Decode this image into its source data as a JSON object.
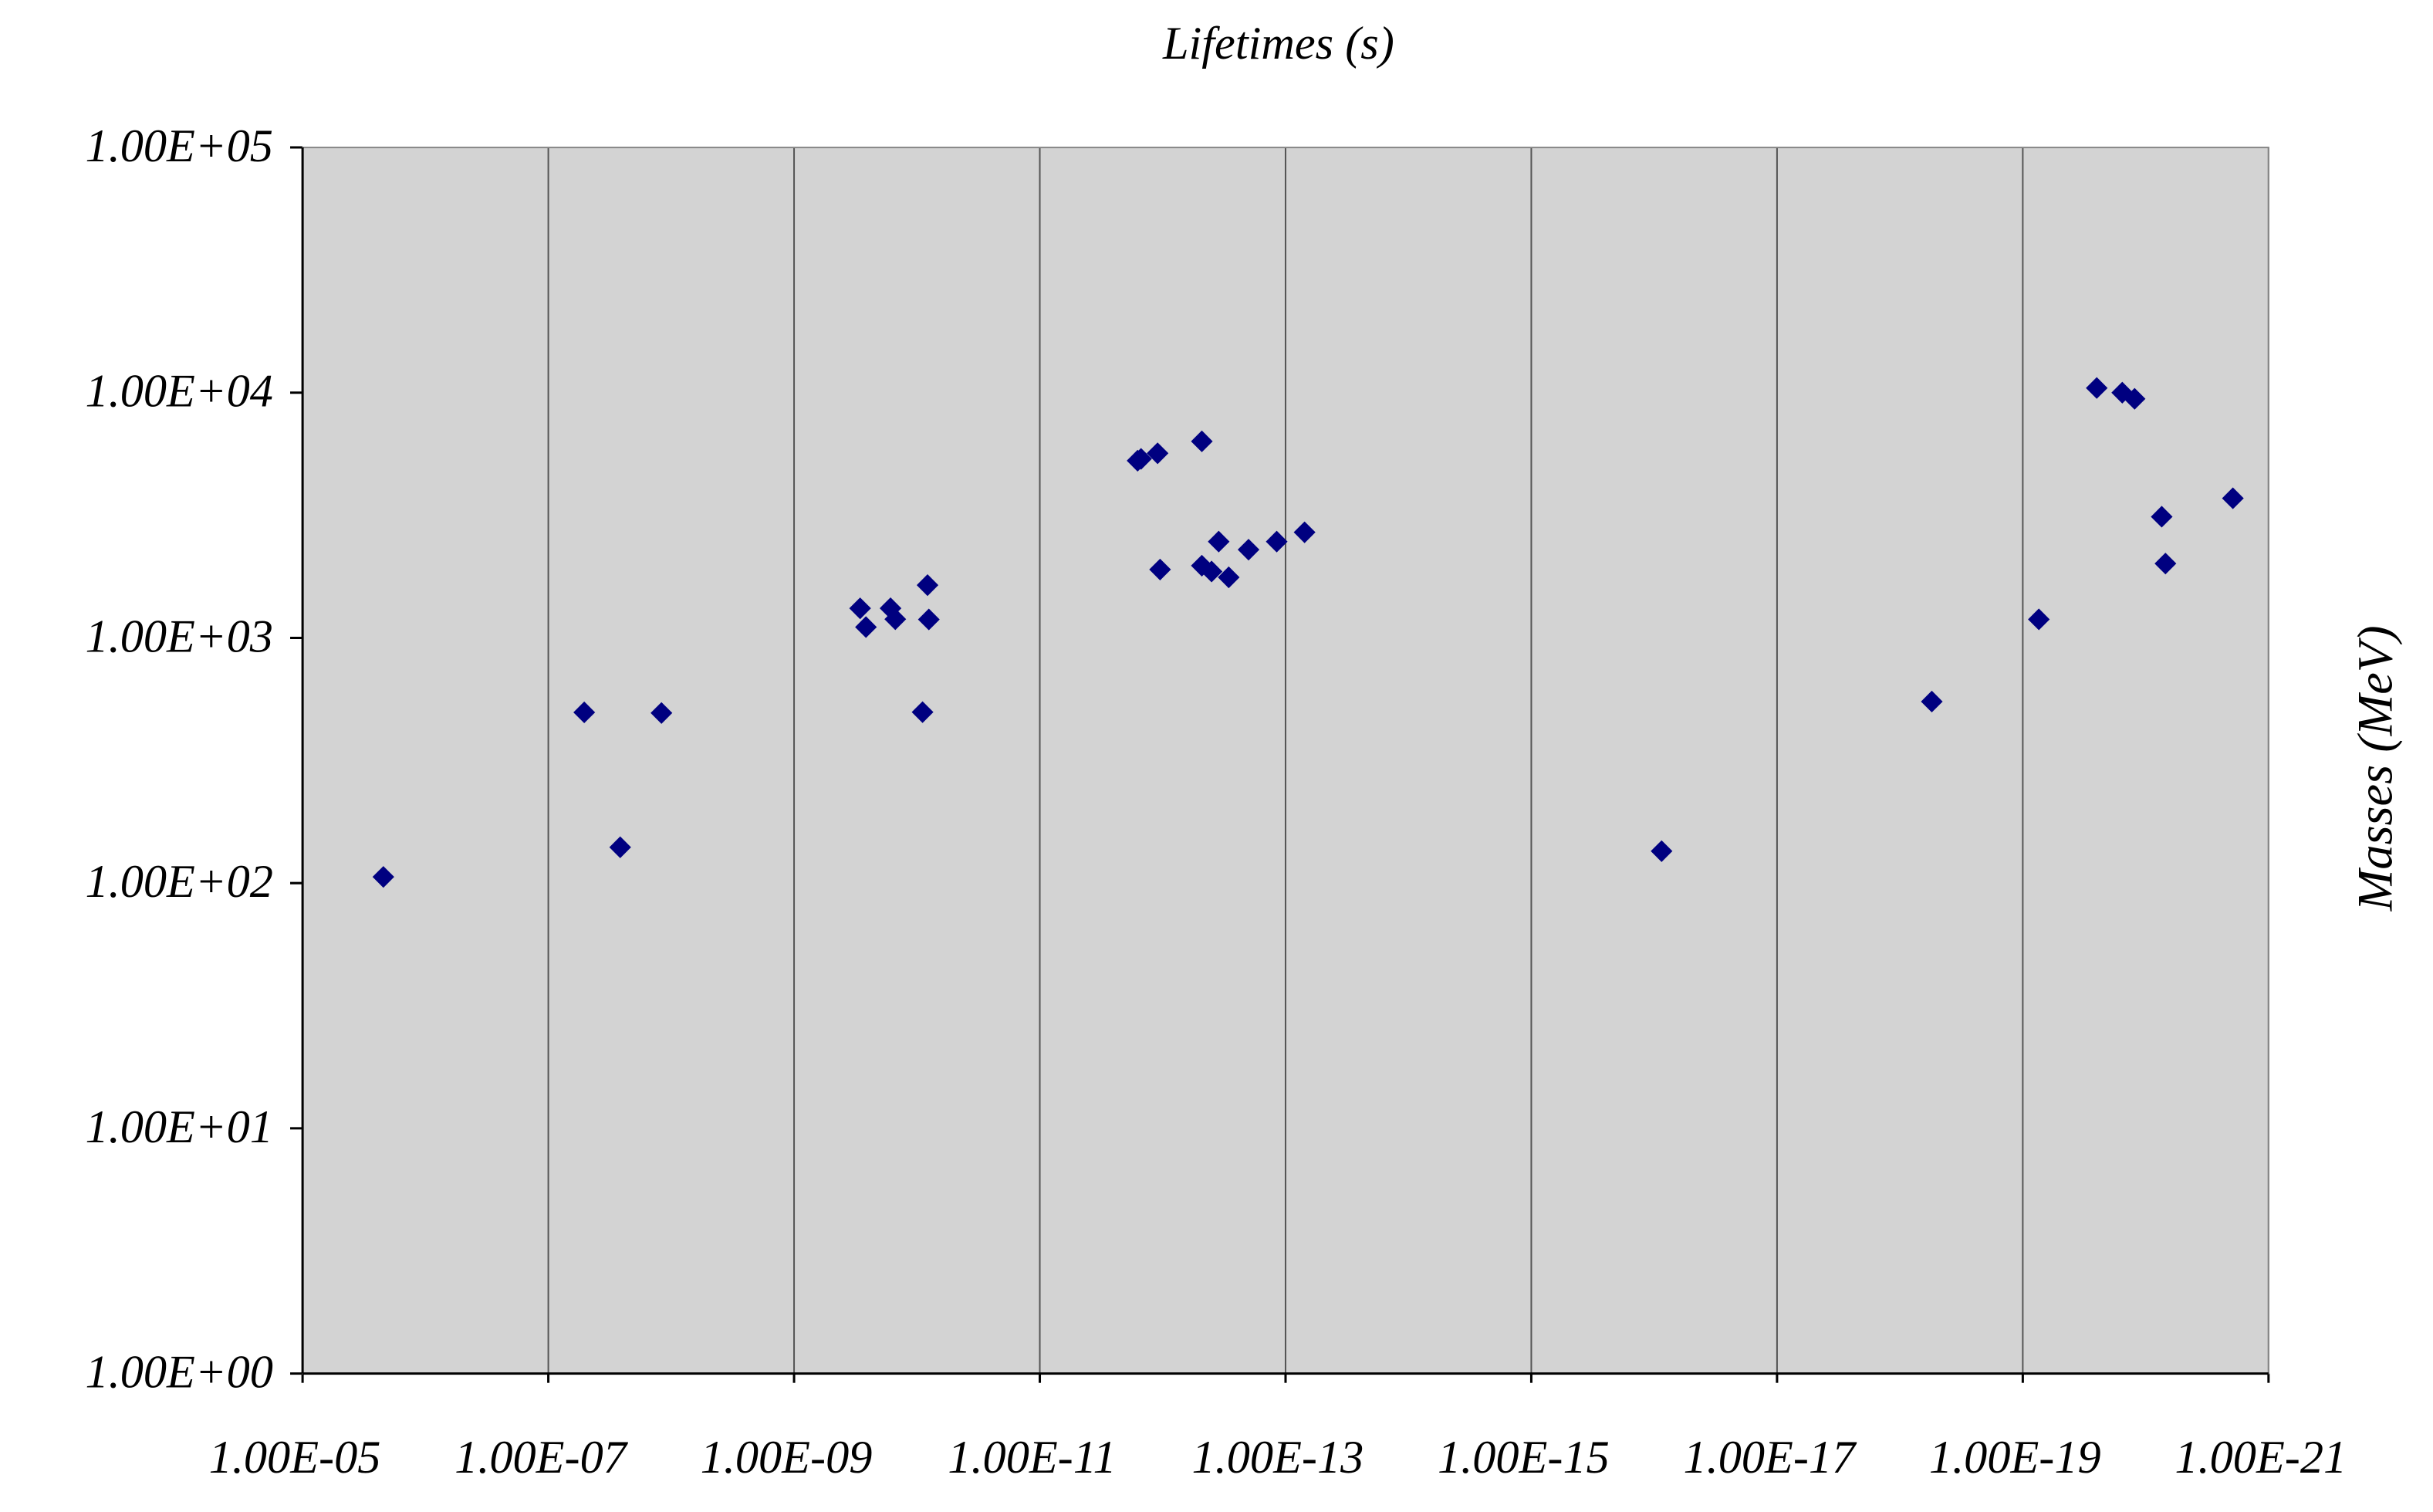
{
  "chart_data": {
    "type": "scatter",
    "title": "Lifetimes (s)",
    "y_label": "Masses (MeV)",
    "x_scale": "log",
    "y_scale": "log",
    "grid": "x",
    "marker": "diamond",
    "background": "#d3d3d3",
    "xlim": [
      1e-05,
      1e-21
    ],
    "ylim": [
      1,
      100000
    ],
    "xticks": [
      {
        "value": 1e-05,
        "label": "1.00E-05"
      },
      {
        "value": 1e-07,
        "label": "1.00E-07"
      },
      {
        "value": 1e-09,
        "label": "1.00E-09"
      },
      {
        "value": 1e-11,
        "label": "1.00E-11"
      },
      {
        "value": 1e-13,
        "label": "1.00E-13"
      },
      {
        "value": 1e-15,
        "label": "1.00E-15"
      },
      {
        "value": 1e-17,
        "label": "1.00E-17"
      },
      {
        "value": 1e-19,
        "label": "1.00E-19"
      },
      {
        "value": 1e-21,
        "label": "1.00E-21"
      }
    ],
    "yticks": [
      {
        "value": 1,
        "label": "1.00E+00"
      },
      {
        "value": 10,
        "label": "1.00E+01"
      },
      {
        "value": 100,
        "label": "1.00E+02"
      },
      {
        "value": 1000,
        "label": "1.00E+03"
      },
      {
        "value": 10000,
        "label": "1.00E+04"
      },
      {
        "value": 100000,
        "label": "1.00E+05"
      }
    ],
    "series": [
      {
        "color": "#000080",
        "x": [
          2.2e-06,
          5.1e-08,
          2.6e-08,
          1.2e-08,
          2.9e-10,
          2.6e-10,
          1.64e-10,
          1.5e-10,
          9e-11,
          8.2e-11,
          8e-11,
          1.6e-12,
          1.5e-12,
          1.1e-12,
          1.05e-12,
          4.8e-13,
          4.8e-13,
          4e-13,
          3.5e-13,
          2.9e-13,
          2e-13,
          1.18e-13,
          7e-14,
          8.7e-17,
          5.5e-19,
          7.4e-20,
          2.5e-20,
          1.55e-20,
          1.23e-20,
          7.4e-21,
          6.9e-21,
          1.95e-21
        ],
        "values": [
          106,
          497,
          140,
          494,
          1320,
          1107,
          1321,
          1192,
          498,
          1641,
          1189,
          5280,
          5370,
          5660,
          1900,
          6330,
          1970,
          1865,
          2470,
          1766,
          2290,
          2470,
          2695,
          135,
          550,
          1190,
          10450,
          10000,
          9440,
          3120,
          2010,
          3710
        ]
      }
    ]
  }
}
